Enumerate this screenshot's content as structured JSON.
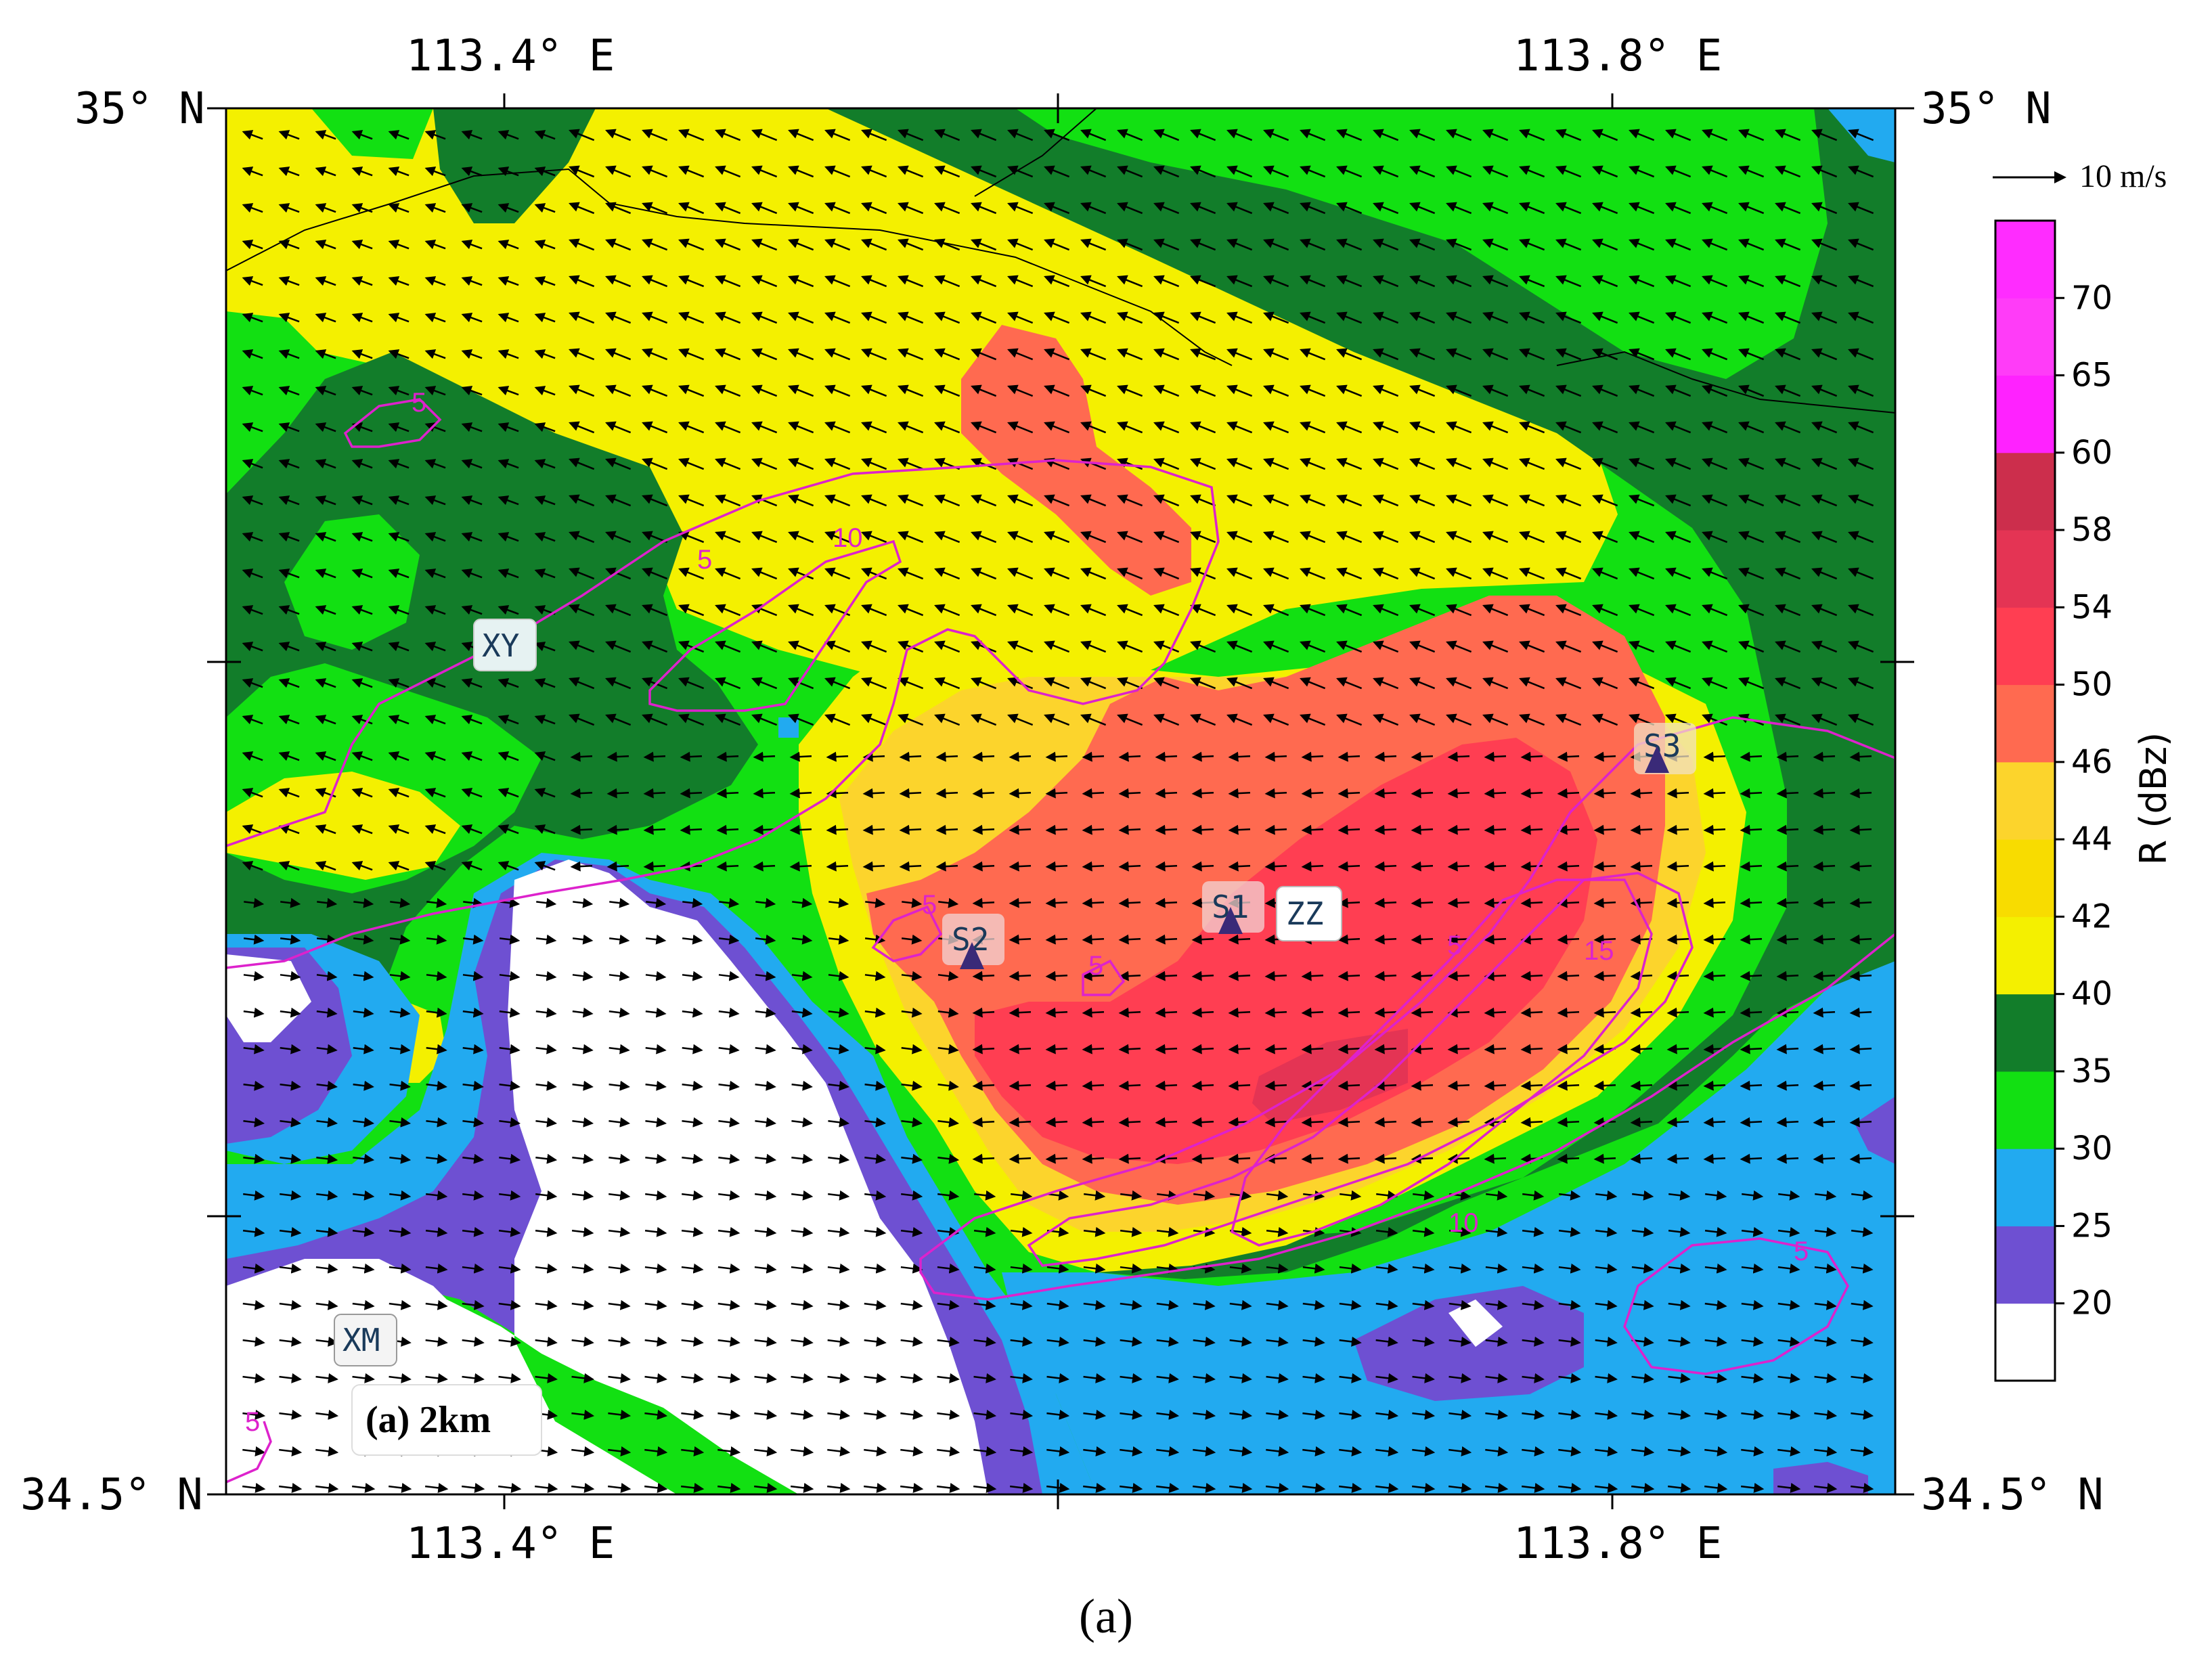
{
  "panel_label": "(a) 2km",
  "caption": "(a)",
  "axes": {
    "top_ticks": [
      "113.4° E",
      "113.8° E"
    ],
    "bottom_ticks": [
      "113.4° E",
      "113.8° E"
    ],
    "left_ticks": [
      "35° N",
      "34.5° N"
    ],
    "right_ticks": [
      "35° N",
      "34.5° N"
    ]
  },
  "wind_reference": {
    "label": "10 m/s",
    "speed_ms": 10
  },
  "colorbar": {
    "title": "R (dBz)",
    "levels": [
      "20",
      "25",
      "30",
      "35",
      "40",
      "42",
      "44",
      "46",
      "50",
      "54",
      "58",
      "60",
      "65",
      "70"
    ],
    "colors": [
      "#ffffff",
      "#6e50d2",
      "#22aaf0",
      "#12e012",
      "#127d2a",
      "#f4f000",
      "#f8dc00",
      "#fcd42c",
      "#ff6a50",
      "#ff3e52",
      "#e43454",
      "#cc2e4c",
      "#ff22ff",
      "#ff3cf8",
      "#ff2cff"
    ]
  },
  "stations": [
    {
      "id": "XY",
      "label": "XY"
    },
    {
      "id": "XM",
      "label": "XM"
    },
    {
      "id": "S1",
      "label": "S1"
    },
    {
      "id": "S2",
      "label": "S2"
    },
    {
      "id": "S3",
      "label": "S3"
    },
    {
      "id": "ZZ",
      "label": "ZZ"
    }
  ],
  "contour_labels": [
    "5",
    "10",
    "5",
    "5",
    "5",
    "5",
    "15",
    "10",
    "5",
    "5"
  ],
  "contour_color": "#dd22cc"
}
